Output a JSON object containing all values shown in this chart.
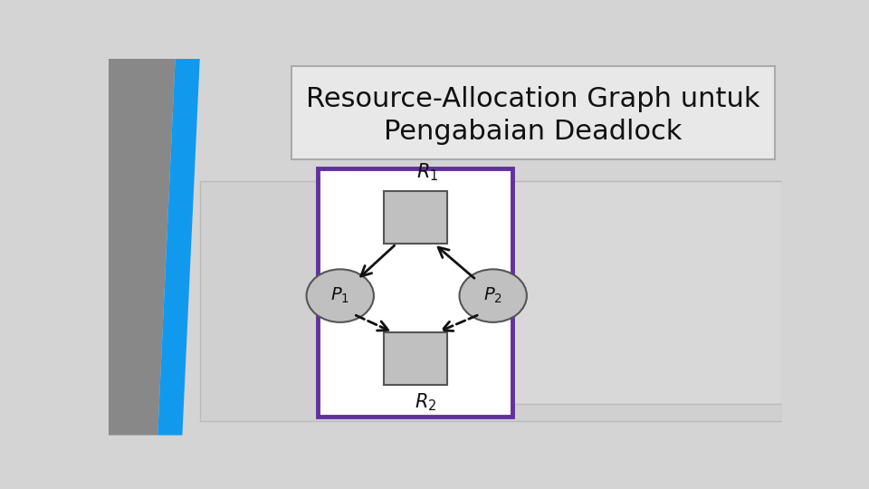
{
  "title_line1": "Resource-Allocation Graph untuk",
  "title_line2": "Pengabaian Deadlock",
  "title_fontsize": 22,
  "bg_color": "#d4d4d4",
  "title_box_facecolor": "#e8e8e8",
  "title_box_edgecolor": "#aaaaaa",
  "diagram_box_border": "#6030a0",
  "diagram_box_bg": "#ffffff",
  "node_fill": "#c0c0c0",
  "node_edge": "#555555",
  "arrow_color": "#111111",
  "label_fontsize": 15,
  "gray_strip_color": "#888888",
  "blue_strip_color": "#1199ee",
  "panel_bg": "#d0d0d0",
  "panel_edge": "#bbbbbb"
}
